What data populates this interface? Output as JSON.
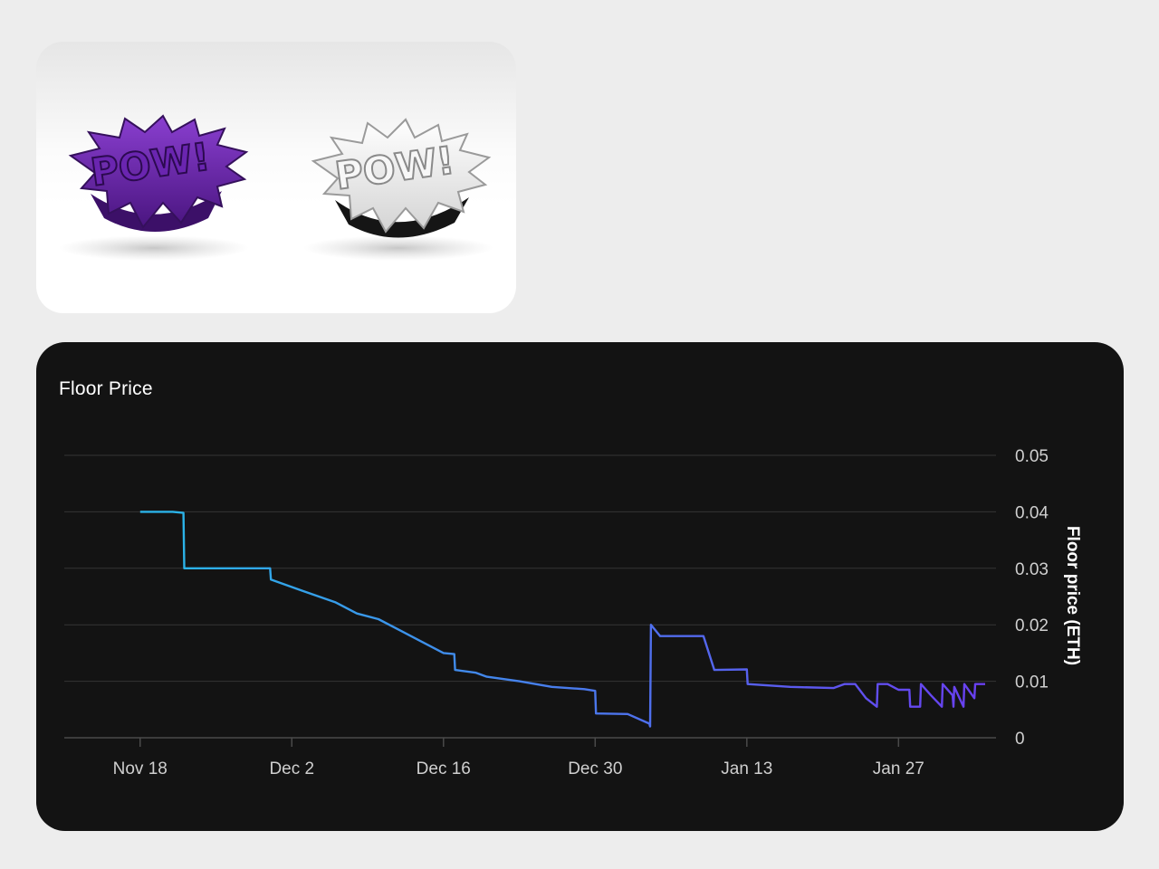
{
  "product_image": {
    "colors": {
      "purple_piece": "#6b2aa8",
      "white_piece": "#f2f2f2"
    },
    "lettering": "POW!"
  },
  "chart": {
    "title": "Floor Price"
  },
  "chart_data": {
    "type": "line",
    "title": "Floor Price",
    "xlabel": "",
    "ylabel": "Floor price (ETH)",
    "y_axis_side": "right",
    "ylim": [
      0,
      0.05
    ],
    "xlim": [
      "2022-11-11",
      "2023-02-05"
    ],
    "grid": true,
    "x_ticks": [
      {
        "date": "2022-11-18",
        "label": "Nov 18"
      },
      {
        "date": "2022-12-02",
        "label": "Dec 2"
      },
      {
        "date": "2022-12-16",
        "label": "Dec 16"
      },
      {
        "date": "2022-12-30",
        "label": "Dec 30"
      },
      {
        "date": "2023-01-13",
        "label": "Jan 13"
      },
      {
        "date": "2023-01-27",
        "label": "Jan 27"
      }
    ],
    "y_ticks": [
      {
        "value": 0,
        "label": "0"
      },
      {
        "value": 0.01,
        "label": "0.01"
      },
      {
        "value": 0.02,
        "label": "0.02"
      },
      {
        "value": 0.03,
        "label": "0.03"
      },
      {
        "value": 0.04,
        "label": "0.04"
      },
      {
        "value": 0.05,
        "label": "0.05"
      }
    ],
    "line_gradient": [
      "#2bb3e8",
      "#6a3df0"
    ],
    "series": [
      {
        "points": [
          [
            "2022-11-18",
            0.04
          ],
          [
            "2022-11-21",
            0.04
          ],
          [
            "2022-11-22",
            0.0398
          ],
          [
            "2022-11-22",
            0.03
          ],
          [
            "2022-11-24",
            0.03
          ],
          [
            "2022-11-28",
            0.03
          ],
          [
            "2022-11-30",
            0.03
          ],
          [
            "2022-11-30",
            0.028
          ],
          [
            "2022-12-03",
            0.026
          ],
          [
            "2022-12-06",
            0.024
          ],
          [
            "2022-12-08",
            0.022
          ],
          [
            "2022-12-10",
            0.021
          ],
          [
            "2022-12-12",
            0.019
          ],
          [
            "2022-12-14",
            0.017
          ],
          [
            "2022-12-16",
            0.015
          ],
          [
            "2022-12-17",
            0.0148
          ],
          [
            "2022-12-17",
            0.012
          ],
          [
            "2022-12-19",
            0.0115
          ],
          [
            "2022-12-20",
            0.0108
          ],
          [
            "2022-12-23",
            0.01
          ],
          [
            "2022-12-26",
            0.009
          ],
          [
            "2022-12-29",
            0.0086
          ],
          [
            "2022-12-30",
            0.0083
          ],
          [
            "2022-12-30",
            0.0043
          ],
          [
            "2023-01-02",
            0.0042
          ],
          [
            "2023-01-04",
            0.0025
          ],
          [
            "2023-01-04",
            0.002
          ],
          [
            "2023-01-04",
            0.02
          ],
          [
            "2023-01-05",
            0.018
          ],
          [
            "2023-01-09",
            0.018
          ],
          [
            "2023-01-10",
            0.012
          ],
          [
            "2023-01-13",
            0.0121
          ],
          [
            "2023-01-13",
            0.0095
          ],
          [
            "2023-01-17",
            0.009
          ],
          [
            "2023-01-21",
            0.0088
          ],
          [
            "2023-01-22",
            0.0095
          ],
          [
            "2023-01-23",
            0.0095
          ],
          [
            "2023-01-24",
            0.007
          ],
          [
            "2023-01-25",
            0.0055
          ],
          [
            "2023-01-25",
            0.0095
          ],
          [
            "2023-01-26",
            0.0095
          ],
          [
            "2023-01-27",
            0.0085
          ],
          [
            "2023-01-28",
            0.0085
          ],
          [
            "2023-01-28",
            0.0055
          ],
          [
            "2023-01-29",
            0.0055
          ],
          [
            "2023-01-29",
            0.0095
          ],
          [
            "2023-01-30",
            0.0075
          ],
          [
            "2023-01-31",
            0.0055
          ],
          [
            "2023-01-31",
            0.0095
          ],
          [
            "2023-02-01",
            0.0075
          ],
          [
            "2023-02-01",
            0.0055
          ],
          [
            "2023-02-01",
            0.009
          ],
          [
            "2023-02-02",
            0.0055
          ],
          [
            "2023-02-02",
            0.0095
          ],
          [
            "2023-02-03",
            0.007
          ],
          [
            "2023-02-03",
            0.0095
          ],
          [
            "2023-02-04",
            0.0095
          ]
        ]
      }
    ]
  }
}
